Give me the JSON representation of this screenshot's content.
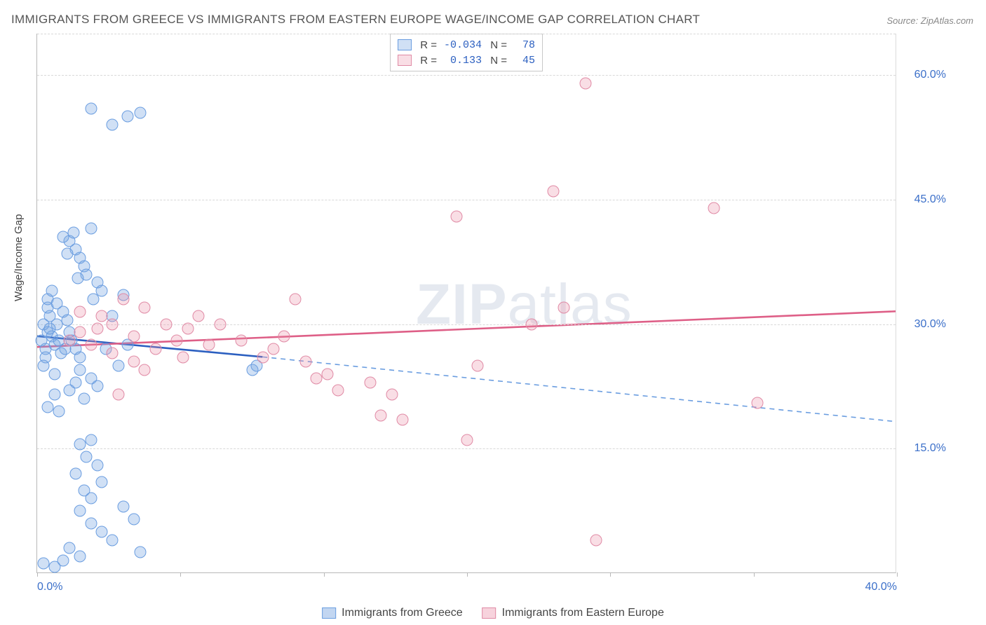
{
  "title": "IMMIGRANTS FROM GREECE VS IMMIGRANTS FROM EASTERN EUROPE WAGE/INCOME GAP CORRELATION CHART",
  "source": "Source: ZipAtlas.com",
  "ylabel": "Wage/Income Gap",
  "watermark_bold": "ZIP",
  "watermark_rest": "atlas",
  "chart": {
    "type": "scatter",
    "xlim": [
      0,
      40
    ],
    "ylim": [
      0,
      65
    ],
    "yticks": [
      15,
      30,
      45,
      60
    ],
    "ytick_labels": [
      "15.0%",
      "30.0%",
      "45.0%",
      "60.0%"
    ],
    "xticks": [
      0,
      6.67,
      13.33,
      20,
      26.67,
      33.33,
      40
    ],
    "xtick_labels_shown": {
      "0": "0.0%",
      "40": "40.0%"
    },
    "grid_color": "#d8d8d8",
    "axis_color": "#b8b8b8",
    "background_color": "#ffffff",
    "marker_radius": 8.5,
    "marker_stroke_width": 1.4,
    "series": [
      {
        "name": "Immigrants from Greece",
        "fill_color": "rgba(120,165,225,0.35)",
        "stroke_color": "#6a9de0",
        "line_color": "#2b5fc0",
        "R": "-0.034",
        "N": "78",
        "trend": {
          "x1": 0,
          "y1": 28.5,
          "x2": 10.5,
          "y2": 26.0,
          "solid": true
        },
        "trend_ext": {
          "x1": 10.5,
          "y1": 26.0,
          "x2": 40,
          "y2": 18.2,
          "dashed": true
        },
        "points": [
          [
            0.2,
            28
          ],
          [
            0.3,
            30
          ],
          [
            0.4,
            27
          ],
          [
            0.5,
            29
          ],
          [
            0.6,
            31
          ],
          [
            0.4,
            26
          ],
          [
            0.7,
            28.5
          ],
          [
            0.8,
            27.5
          ],
          [
            0.5,
            32
          ],
          [
            0.9,
            30
          ],
          [
            1.0,
            28
          ],
          [
            1.1,
            26.5
          ],
          [
            0.6,
            29.5
          ],
          [
            1.2,
            31.5
          ],
          [
            0.3,
            25
          ],
          [
            1.3,
            27
          ],
          [
            0.8,
            24
          ],
          [
            1.5,
            29
          ],
          [
            1.4,
            30.5
          ],
          [
            1.6,
            28
          ],
          [
            1.8,
            27
          ],
          [
            2.0,
            26
          ],
          [
            1.5,
            40
          ],
          [
            1.7,
            41
          ],
          [
            1.8,
            39
          ],
          [
            2.0,
            38
          ],
          [
            2.2,
            37
          ],
          [
            1.2,
            40.5
          ],
          [
            1.4,
            38.5
          ],
          [
            2.5,
            41.5
          ],
          [
            2.3,
            36
          ],
          [
            2.8,
            35
          ],
          [
            3.0,
            34
          ],
          [
            1.9,
            35.5
          ],
          [
            2.6,
            33
          ],
          [
            1.5,
            22
          ],
          [
            1.8,
            23
          ],
          [
            2.0,
            24.5
          ],
          [
            2.2,
            21
          ],
          [
            2.5,
            23.5
          ],
          [
            2.8,
            22.5
          ],
          [
            3.2,
            27
          ],
          [
            3.5,
            31
          ],
          [
            4.0,
            33.5
          ],
          [
            3.8,
            25
          ],
          [
            4.2,
            27.5
          ],
          [
            0.5,
            20
          ],
          [
            0.8,
            21.5
          ],
          [
            1.0,
            19.5
          ],
          [
            0.5,
            33
          ],
          [
            0.7,
            34
          ],
          [
            0.9,
            32.5
          ],
          [
            2.5,
            56
          ],
          [
            3.5,
            54
          ],
          [
            4.2,
            55
          ],
          [
            4.8,
            55.5
          ],
          [
            2.0,
            15.5
          ],
          [
            2.3,
            14
          ],
          [
            2.5,
            16
          ],
          [
            2.8,
            13
          ],
          [
            1.8,
            12
          ],
          [
            2.2,
            10
          ],
          [
            2.5,
            9
          ],
          [
            2.0,
            7.5
          ],
          [
            3.0,
            11
          ],
          [
            2.5,
            6
          ],
          [
            3.0,
            5
          ],
          [
            3.5,
            4
          ],
          [
            4.0,
            8
          ],
          [
            4.5,
            6.5
          ],
          [
            1.5,
            3
          ],
          [
            2.0,
            2
          ],
          [
            4.8,
            2.5
          ],
          [
            1.2,
            1.5
          ],
          [
            0.8,
            0.8
          ],
          [
            0.3,
            1.2
          ],
          [
            10.0,
            24.5
          ],
          [
            10.2,
            25
          ]
        ]
      },
      {
        "name": "Immigrants from Eastern Europe",
        "fill_color": "rgba(235,145,170,0.30)",
        "stroke_color": "#e08aa5",
        "line_color": "#de5f87",
        "R": "0.133",
        "N": "45",
        "trend": {
          "x1": 0,
          "y1": 27.2,
          "x2": 40,
          "y2": 31.5,
          "solid": true
        },
        "points": [
          [
            1.5,
            28
          ],
          [
            2.0,
            29
          ],
          [
            2.5,
            27.5
          ],
          [
            3.0,
            31
          ],
          [
            3.5,
            30
          ],
          [
            4.0,
            33
          ],
          [
            4.5,
            28.5
          ],
          [
            5.0,
            32
          ],
          [
            5.5,
            27
          ],
          [
            6.0,
            30
          ],
          [
            6.5,
            28
          ],
          [
            7.0,
            29.5
          ],
          [
            7.5,
            31
          ],
          [
            8.0,
            27.5
          ],
          [
            3.8,
            21.5
          ],
          [
            4.5,
            25.5
          ],
          [
            5.0,
            24.5
          ],
          [
            10.5,
            26
          ],
          [
            11.0,
            27
          ],
          [
            11.5,
            28.5
          ],
          [
            12.0,
            33
          ],
          [
            12.5,
            25.5
          ],
          [
            13.0,
            23.5
          ],
          [
            13.5,
            24
          ],
          [
            14.0,
            22
          ],
          [
            15.5,
            23
          ],
          [
            16.5,
            21.5
          ],
          [
            17.0,
            18.5
          ],
          [
            16.0,
            19
          ],
          [
            19.5,
            43
          ],
          [
            20.5,
            25
          ],
          [
            20.0,
            16
          ],
          [
            23.0,
            30
          ],
          [
            24.0,
            46
          ],
          [
            24.5,
            32
          ],
          [
            25.5,
            59
          ],
          [
            26.0,
            4
          ],
          [
            31.5,
            44
          ],
          [
            33.5,
            20.5
          ],
          [
            2.0,
            31.5
          ],
          [
            2.8,
            29.5
          ],
          [
            3.5,
            26.5
          ],
          [
            6.8,
            26
          ],
          [
            8.5,
            30
          ],
          [
            9.5,
            28
          ]
        ]
      }
    ]
  },
  "legend_bottom": [
    {
      "label": "Immigrants from Greece",
      "fill": "rgba(120,165,225,0.45)",
      "stroke": "#6a9de0"
    },
    {
      "label": "Immigrants from Eastern Europe",
      "fill": "rgba(235,145,170,0.40)",
      "stroke": "#e08aa5"
    }
  ]
}
